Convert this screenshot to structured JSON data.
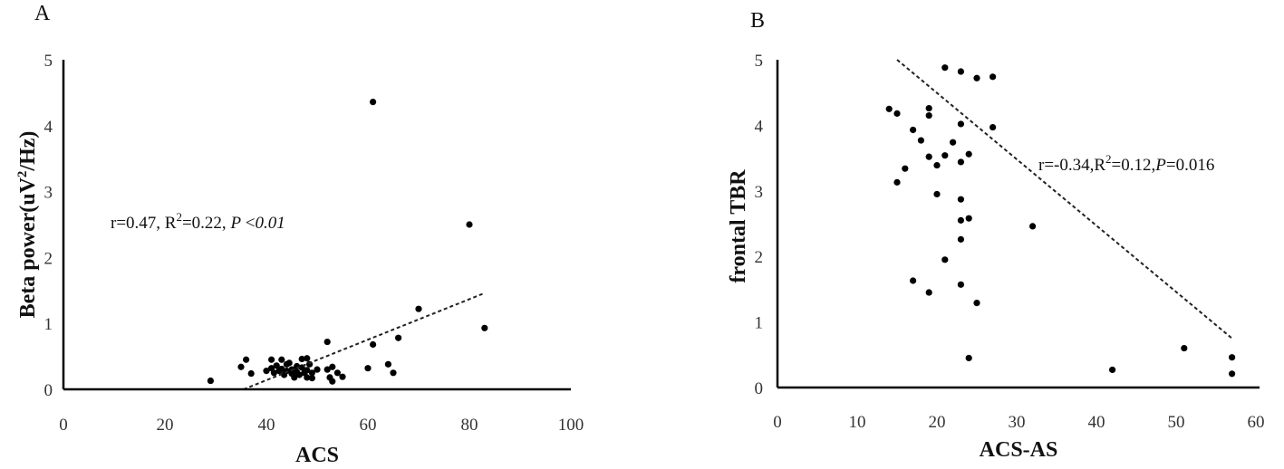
{
  "chart_data": [
    {
      "type": "scatter",
      "panel_label": "A",
      "xlabel": "ACS",
      "ylabel_parts": [
        "Beta power(uV",
        "2",
        "/Hz)"
      ],
      "xlim": [
        0,
        100
      ],
      "ylim": [
        0,
        5
      ],
      "xticks": [
        "0",
        "20",
        "40",
        "60",
        "80",
        "100"
      ],
      "yticks": [
        "0",
        "1",
        "2",
        "3",
        "4",
        "5"
      ],
      "annotation_parts": [
        "r=0.47, R",
        "2",
        "=0.22, ",
        "P",
        " <",
        "0.01"
      ],
      "trendline": [
        [
          35.5,
          0.0
        ],
        [
          83,
          1.46
        ]
      ],
      "points": [
        [
          29,
          0.13
        ],
        [
          35,
          0.34
        ],
        [
          36,
          0.45
        ],
        [
          37,
          0.24
        ],
        [
          40,
          0.28
        ],
        [
          41,
          0.45
        ],
        [
          41,
          0.32
        ],
        [
          41.5,
          0.25
        ],
        [
          42,
          0.36
        ],
        [
          42.5,
          0.28
        ],
        [
          43,
          0.45
        ],
        [
          43,
          0.31
        ],
        [
          43.5,
          0.22
        ],
        [
          44,
          0.38
        ],
        [
          44,
          0.28
        ],
        [
          44.5,
          0.4
        ],
        [
          45,
          0.3
        ],
        [
          45,
          0.24
        ],
        [
          45.5,
          0.18
        ],
        [
          46,
          0.35
        ],
        [
          46,
          0.26
        ],
        [
          46.5,
          0.22
        ],
        [
          47,
          0.46
        ],
        [
          47,
          0.33
        ],
        [
          47.5,
          0.25
        ],
        [
          48,
          0.47
        ],
        [
          48,
          0.29
        ],
        [
          48,
          0.18
        ],
        [
          48.5,
          0.38
        ],
        [
          49,
          0.25
        ],
        [
          49,
          0.17
        ],
        [
          50,
          0.3
        ],
        [
          52,
          0.72
        ],
        [
          52,
          0.3
        ],
        [
          52.5,
          0.18
        ],
        [
          53,
          0.34
        ],
        [
          53,
          0.12
        ],
        [
          54,
          0.25
        ],
        [
          55,
          0.19
        ],
        [
          60,
          0.32
        ],
        [
          61,
          0.68
        ],
        [
          61,
          4.36
        ],
        [
          64,
          0.38
        ],
        [
          65,
          0.25
        ],
        [
          66,
          0.78
        ],
        [
          70,
          1.22
        ],
        [
          80,
          2.5
        ],
        [
          83,
          0.93
        ]
      ]
    },
    {
      "type": "scatter",
      "panel_label": "B",
      "xlabel": "ACS-AS",
      "ylabel_parts": [
        "frontal TBR"
      ],
      "xlim": [
        0,
        60
      ],
      "ylim": [
        0,
        5
      ],
      "xticks": [
        "0",
        "10",
        "20",
        "30",
        "40",
        "50",
        "60"
      ],
      "yticks": [
        "0",
        "1",
        "2",
        "3",
        "4",
        "5"
      ],
      "annotation_parts": [
        "r=-0.34,R",
        "2",
        "=0.12,",
        "P",
        "=0.016",
        ""
      ],
      "trendline": [
        [
          15,
          5.0
        ],
        [
          57,
          0.75
        ]
      ],
      "points": [
        [
          14,
          4.25
        ],
        [
          15,
          4.18
        ],
        [
          15,
          3.13
        ],
        [
          16,
          3.34
        ],
        [
          17,
          3.93
        ],
        [
          17,
          1.63
        ],
        [
          18,
          3.77
        ],
        [
          19,
          4.26
        ],
        [
          19,
          4.15
        ],
        [
          19,
          3.52
        ],
        [
          19,
          1.45
        ],
        [
          20,
          3.39
        ],
        [
          20,
          2.95
        ],
        [
          21,
          4.88
        ],
        [
          21,
          3.54
        ],
        [
          21,
          1.95
        ],
        [
          22,
          3.74
        ],
        [
          23,
          4.82
        ],
        [
          23,
          4.02
        ],
        [
          23,
          3.44
        ],
        [
          23,
          2.87
        ],
        [
          23,
          2.55
        ],
        [
          23,
          2.26
        ],
        [
          23,
          1.57
        ],
        [
          24,
          3.56
        ],
        [
          24,
          2.58
        ],
        [
          24,
          0.45
        ],
        [
          25,
          4.72
        ],
        [
          25,
          1.29
        ],
        [
          27,
          4.74
        ],
        [
          27,
          3.97
        ],
        [
          32,
          2.46
        ],
        [
          42,
          0.27
        ],
        [
          51,
          0.6
        ],
        [
          57,
          0.46
        ],
        [
          57,
          0.21
        ]
      ]
    }
  ]
}
